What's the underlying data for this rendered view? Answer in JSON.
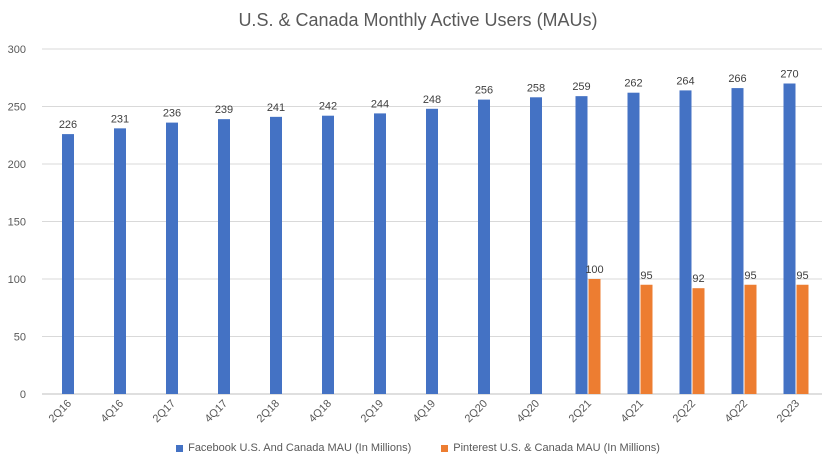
{
  "chart_data": {
    "type": "bar",
    "title": "U.S. & Canada Monthly Active Users (MAUs)",
    "xlabel": "",
    "ylabel": "",
    "ylim": [
      0,
      300
    ],
    "yticks": [
      0,
      50,
      100,
      150,
      200,
      250,
      300
    ],
    "grid": true,
    "legend_position": "bottom",
    "categories": [
      "2Q16",
      "4Q16",
      "2Q17",
      "4Q17",
      "2Q18",
      "4Q18",
      "2Q19",
      "4Q19",
      "2Q20",
      "4Q20",
      "2Q21",
      "4Q21",
      "2Q22",
      "4Q22",
      "2Q23"
    ],
    "series": [
      {
        "name": "Facebook U.S. And Canada MAU (In Millions)",
        "color": "#4472C4",
        "values": [
          226,
          231,
          236,
          239,
          241,
          242,
          244,
          248,
          256,
          258,
          259,
          262,
          264,
          266,
          270
        ]
      },
      {
        "name": "Pinterest U.S. & Canada MAU (In Millions)",
        "color": "#ED7D31",
        "values": [
          null,
          null,
          null,
          null,
          null,
          null,
          null,
          null,
          null,
          null,
          100,
          95,
          92,
          95,
          95
        ]
      }
    ]
  }
}
